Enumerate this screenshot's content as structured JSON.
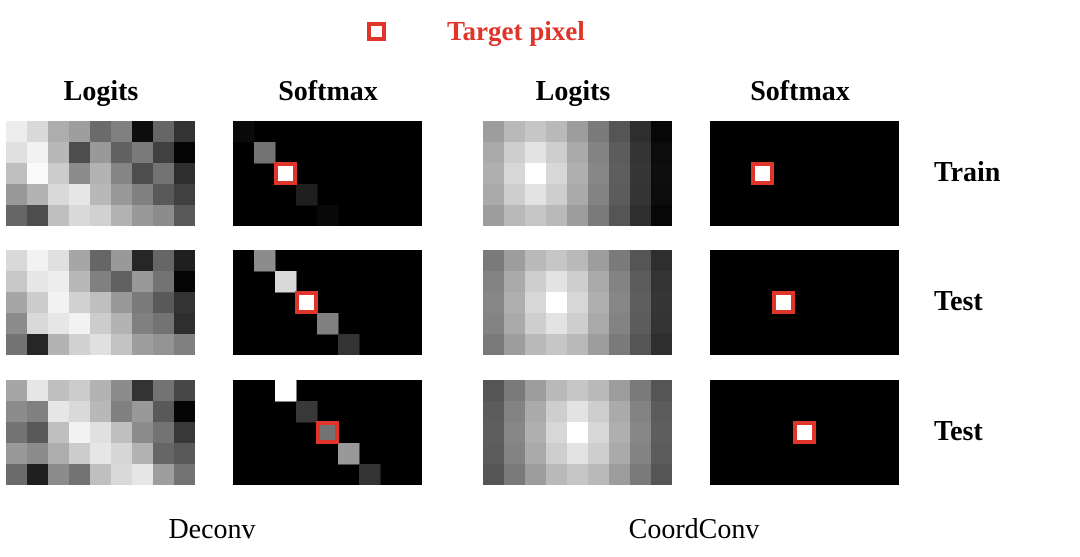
{
  "legend": {
    "label": "Target pixel",
    "marker_color": "#e0352a"
  },
  "columns": {
    "deconv_logits": "Logits",
    "deconv_softmax": "Softmax",
    "coordconv_logits": "Logits",
    "coordconv_softmax": "Softmax"
  },
  "rows": [
    "Train",
    "Test",
    "Test"
  ],
  "groups": {
    "left": "Deconv",
    "right": "CoordConv"
  },
  "grid": {
    "cols": 9,
    "rows": 5
  },
  "panels": [
    {
      "deconv_logits": [
        [
          0.93,
          0.85,
          0.68,
          0.62,
          0.42,
          0.5,
          0.05,
          0.4,
          0.2
        ],
        [
          0.88,
          0.95,
          0.72,
          0.3,
          0.6,
          0.38,
          0.48,
          0.25,
          0.02
        ],
        [
          0.75,
          0.98,
          0.8,
          0.55,
          0.7,
          0.52,
          0.3,
          0.45,
          0.18
        ],
        [
          0.6,
          0.7,
          0.85,
          0.9,
          0.72,
          0.6,
          0.5,
          0.35,
          0.25
        ],
        [
          0.4,
          0.3,
          0.75,
          0.85,
          0.82,
          0.7,
          0.6,
          0.55,
          0.35
        ]
      ],
      "deconv_softmax": {
        "diag": [
          [
            0,
            0.04
          ],
          [
            1,
            0.45
          ],
          [
            2,
            1.0
          ],
          [
            3,
            0.12
          ],
          [
            4,
            0.03
          ]
        ],
        "target": [
          2,
          2
        ]
      },
      "coordconv_logits": {
        "center": [
          2,
          2
        ],
        "falloff": 0.15
      },
      "coordconv_softmax": {
        "target": [
          2,
          2
        ]
      }
    },
    {
      "deconv_logits": [
        [
          0.85,
          0.95,
          0.88,
          0.65,
          0.4,
          0.6,
          0.15,
          0.4,
          0.12
        ],
        [
          0.78,
          0.9,
          0.93,
          0.72,
          0.5,
          0.38,
          0.6,
          0.45,
          0.02
        ],
        [
          0.65,
          0.8,
          0.95,
          0.82,
          0.75,
          0.6,
          0.48,
          0.35,
          0.2
        ],
        [
          0.55,
          0.85,
          0.9,
          0.95,
          0.8,
          0.7,
          0.5,
          0.45,
          0.18
        ],
        [
          0.45,
          0.15,
          0.7,
          0.82,
          0.88,
          0.76,
          0.62,
          0.58,
          0.5
        ]
      ],
      "deconv_softmax": {
        "diag": [
          [
            1,
            0.55
          ],
          [
            2,
            0.85
          ],
          [
            3,
            1.0
          ],
          [
            4,
            0.5
          ],
          [
            5,
            0.2
          ]
        ],
        "target": [
          3,
          2
        ]
      },
      "coordconv_logits": {
        "center": [
          3,
          2
        ],
        "falloff": 0.15
      },
      "coordconv_softmax": {
        "target": [
          3,
          2
        ]
      }
    },
    {
      "deconv_logits": [
        [
          0.65,
          0.9,
          0.75,
          0.8,
          0.7,
          0.55,
          0.2,
          0.45,
          0.28
        ],
        [
          0.55,
          0.5,
          0.9,
          0.85,
          0.72,
          0.5,
          0.6,
          0.35,
          0.02
        ],
        [
          0.45,
          0.35,
          0.75,
          0.95,
          0.88,
          0.75,
          0.55,
          0.45,
          0.22
        ],
        [
          0.6,
          0.55,
          0.68,
          0.8,
          0.9,
          0.84,
          0.7,
          0.4,
          0.35
        ],
        [
          0.42,
          0.12,
          0.55,
          0.45,
          0.75,
          0.85,
          0.9,
          0.62,
          0.45
        ]
      ],
      "deconv_softmax": {
        "diag": [
          [
            2,
            1.0
          ],
          [
            3,
            0.22
          ],
          [
            4,
            0.45
          ],
          [
            5,
            0.6
          ],
          [
            6,
            0.2
          ]
        ],
        "target": [
          4,
          2
        ]
      },
      "coordconv_logits": {
        "center": [
          4,
          2
        ],
        "falloff": 0.15
      },
      "coordconv_softmax": {
        "target": [
          4,
          2
        ]
      }
    }
  ]
}
